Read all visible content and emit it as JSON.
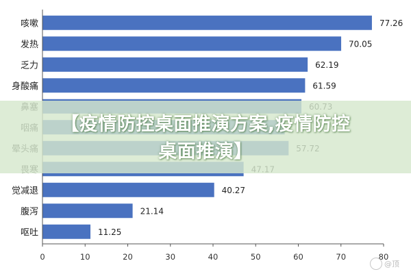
{
  "chart_data": {
    "type": "bar",
    "orientation": "horizontal",
    "categories": [
      "咳嗽",
      "发热",
      "乏力",
      "身酸痛",
      "鼻塞",
      "咽痛",
      "晕头痛",
      "畏寒",
      "觉减退",
      "腹泻",
      "呕吐"
    ],
    "values": [
      77.26,
      70.05,
      62.19,
      61.59,
      60.73,
      56.8,
      57.72,
      47.17,
      40.27,
      21.14,
      11.25
    ],
    "value_labels": [
      "77.26",
      "70.05",
      "62.19",
      "61.59",
      "60.73",
      "",
      "57.72",
      "47.17",
      "40.27",
      "21.14",
      "11.25"
    ],
    "xlim": [
      0,
      80
    ],
    "xticks": [
      "0",
      "10",
      "20",
      "30",
      "40",
      "50",
      "60",
      "70",
      "80"
    ],
    "grid": false,
    "bar_color": "#4a72c0"
  },
  "banner": {
    "line1": "【疫情防控桌面推演方案,疫情防控",
    "line2": "桌面推演】"
  },
  "watermark": {
    "text": "@顶"
  }
}
